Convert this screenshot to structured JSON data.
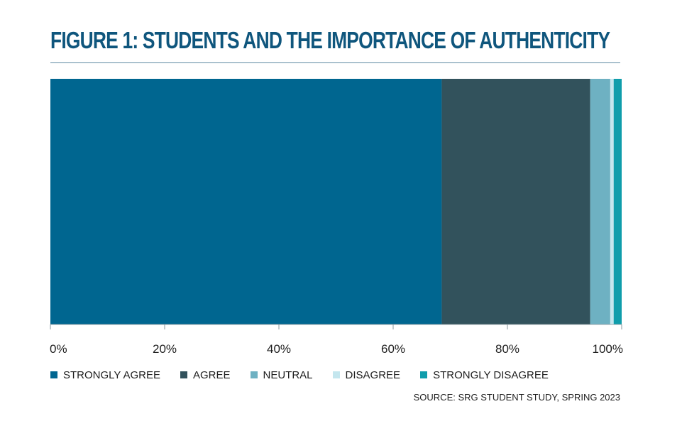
{
  "chart_data": {
    "type": "bar",
    "orientation": "horizontal",
    "stacked": true,
    "title": "FIGURE 1: STUDENTS AND THE IMPORTANCE OF AUTHENTICITY",
    "xlim": [
      0,
      100
    ],
    "x_ticks": [
      "0%",
      "20%",
      "40%",
      "60%",
      "80%",
      "100%"
    ],
    "series": [
      {
        "name": "STRONGLY AGREE",
        "values": [
          68.5
        ],
        "color": "#006690"
      },
      {
        "name": "AGREE",
        "values": [
          26.0
        ],
        "color": "#32525c"
      },
      {
        "name": "NEUTRAL",
        "values": [
          3.5
        ],
        "color": "#6eb1c2"
      },
      {
        "name": "DISAGREE",
        "values": [
          0.6
        ],
        "color": "#c4e6ee"
      },
      {
        "name": "STRONGLY DISAGREE",
        "values": [
          1.4
        ],
        "color": "#0f9dab"
      }
    ],
    "legend_position": "bottom-left",
    "grid": false,
    "source": "SOURCE: SRG STUDENT STUDY, SPRING 2023"
  }
}
